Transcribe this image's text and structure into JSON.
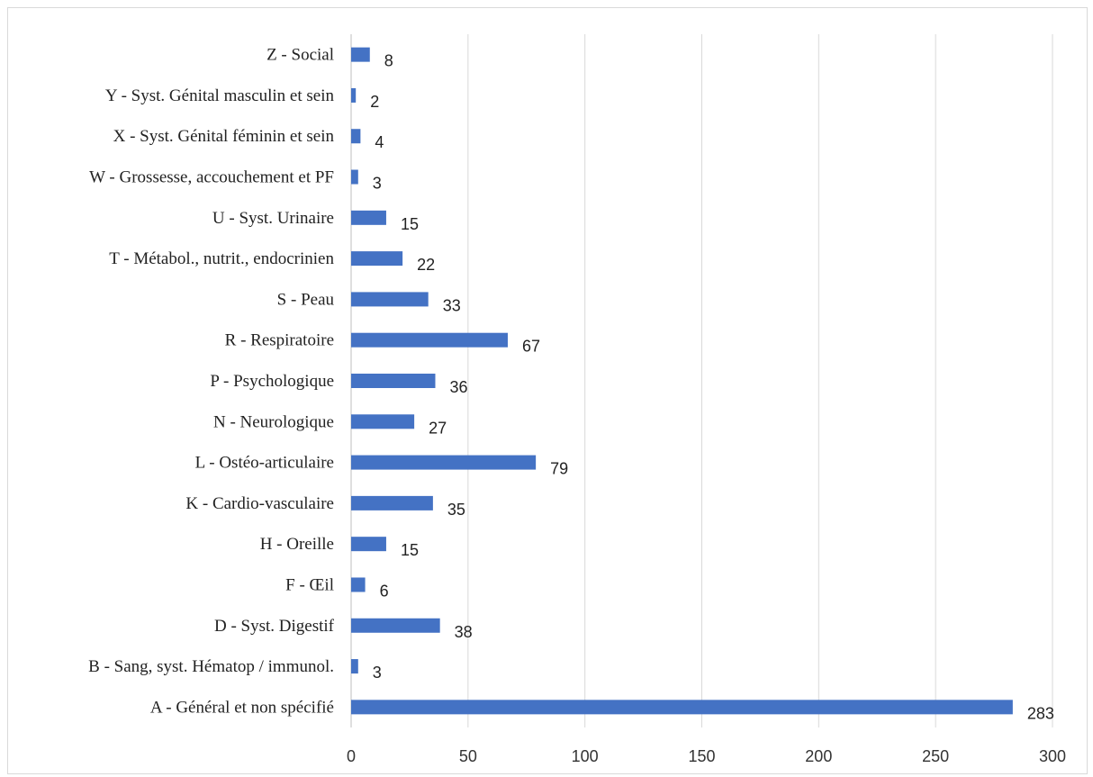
{
  "chart_data": {
    "type": "bar",
    "orientation": "horizontal",
    "title": "",
    "xlabel": "",
    "ylabel": "",
    "xlim": [
      0,
      300
    ],
    "x_ticks": [
      0,
      50,
      100,
      150,
      200,
      250,
      300
    ],
    "grid": "vertical gridlines on",
    "legend": "none",
    "bar_color": "#4472c4",
    "categories": [
      "Z - Social",
      "Y - Syst. Génital masculin et sein",
      "X - Syst. Génital féminin et sein",
      "W - Grossesse, accouchement et PF",
      "U - Syst. Urinaire",
      "T - Métabol., nutrit., endocrinien",
      "S - Peau",
      "R - Respiratoire",
      "P - Psychologique",
      "N - Neurologique",
      "L - Ostéo-articulaire",
      "K - Cardio-vasculaire",
      "H - Oreille",
      "F - Œil",
      "D - Syst. Digestif",
      "B - Sang, syst. Hématop / immunol.",
      "A - Général et non spécifié"
    ],
    "values": [
      8,
      2,
      4,
      3,
      15,
      22,
      33,
      67,
      36,
      27,
      79,
      35,
      15,
      6,
      38,
      3,
      283
    ]
  }
}
